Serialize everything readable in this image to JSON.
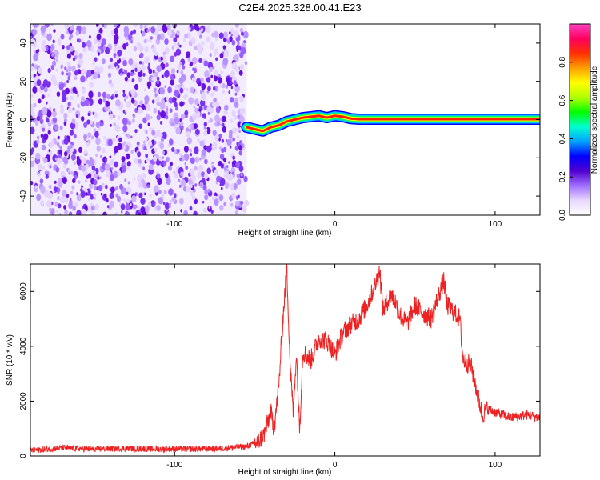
{
  "page_title": "C2E4.2025.328.00.41.E23",
  "chart_data": [
    {
      "type": "heatmap",
      "title": "C2E4.2025.328.00.41.E23",
      "xlabel": "Height of straight line (km)",
      "ylabel": "Frequency (Hz)",
      "xlim": [
        -190,
        128
      ],
      "ylim": [
        -50,
        50
      ],
      "xticks": [
        -100,
        0,
        100
      ],
      "yticks": [
        -40,
        -20,
        0,
        20,
        40
      ],
      "colorbar": {
        "label": "Normalized spectral amplitude",
        "range": [
          0,
          1
        ],
        "ticks": [
          0.0,
          0.2,
          0.4,
          0.6,
          0.8
        ],
        "colormap": [
          "#ffffff",
          "#e8d8ff",
          "#a070ff",
          "#5000d0",
          "#0000ff",
          "#00a0ff",
          "#00ffd0",
          "#00ff00",
          "#b0ff00",
          "#ffff00",
          "#ffa000",
          "#ff3000",
          "#ff0060",
          "#ff40c0"
        ]
      },
      "noise_region_x": [
        -190,
        -55
      ],
      "ridge": {
        "x": [
          -55,
          -50,
          -45,
          -40,
          -35,
          -30,
          -25,
          -20,
          -15,
          -10,
          -5,
          0,
          5,
          10,
          15,
          128
        ],
        "y": [
          -4,
          -5,
          -6,
          -4,
          -3,
          -1,
          0,
          1,
          1.5,
          2,
          1,
          2,
          1.5,
          0.5,
          0.2,
          0.2
        ]
      }
    },
    {
      "type": "line",
      "xlabel": "Height of straight line (km)",
      "ylabel": "SNR (10 * v/v)",
      "xlim": [
        -190,
        128
      ],
      "ylim": [
        0,
        7000
      ],
      "xticks": [
        -100,
        0,
        100
      ],
      "yticks": [
        0,
        2000,
        4000,
        6000
      ],
      "line_color": "#ee2222",
      "x": [
        -190,
        -170,
        -150,
        -130,
        -110,
        -90,
        -70,
        -55,
        -48,
        -44,
        -40,
        -38,
        -35,
        -33,
        -30,
        -28,
        -26,
        -24,
        -22,
        -20,
        -15,
        -10,
        -5,
        0,
        5,
        10,
        15,
        20,
        25,
        28,
        30,
        35,
        38,
        40,
        45,
        50,
        55,
        60,
        65,
        68,
        70,
        75,
        78,
        80,
        85,
        90,
        92,
        95,
        100,
        110,
        120,
        128
      ],
      "y": [
        200,
        300,
        250,
        280,
        250,
        250,
        280,
        350,
        500,
        800,
        1600,
        1000,
        2500,
        4500,
        6900,
        3500,
        1500,
        3800,
        1000,
        3800,
        3500,
        4300,
        4200,
        3700,
        4500,
        4800,
        5000,
        5500,
        6200,
        6800,
        5300,
        5900,
        5600,
        5200,
        4800,
        5500,
        5200,
        5000,
        5900,
        6400,
        5500,
        5200,
        5000,
        3500,
        3300,
        2000,
        1500,
        1700,
        1600,
        1400,
        1500,
        1400
      ]
    }
  ]
}
